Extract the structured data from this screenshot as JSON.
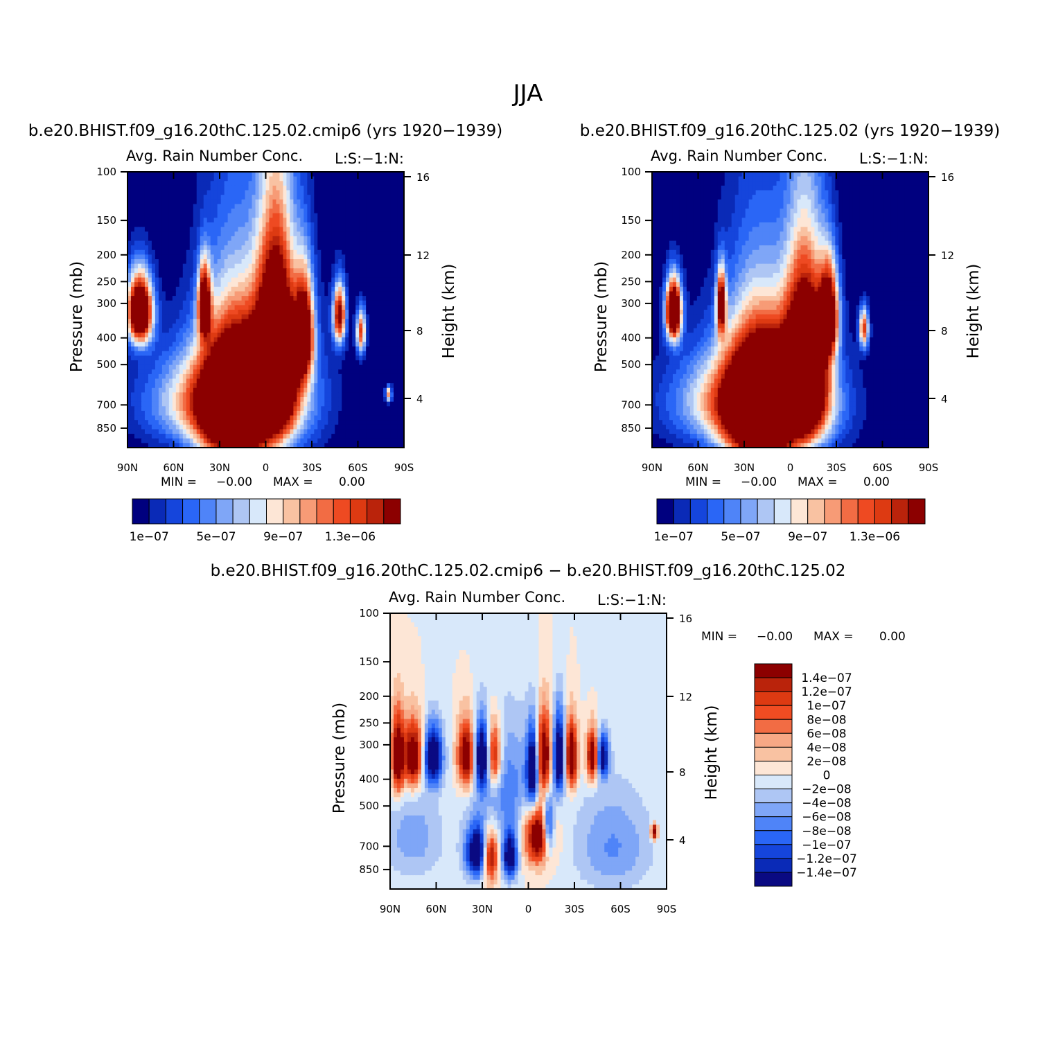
{
  "figure": {
    "title": "JJA"
  },
  "palettes": {
    "field": [
      "#00007f",
      "#0a2ab7",
      "#1545dc",
      "#2a66f6",
      "#4f84f8",
      "#7fa6f7",
      "#aec6f4",
      "#d8e8fa",
      "#fde6d6",
      "#f9c2a2",
      "#f79b76",
      "#f26c44",
      "#ee4a22",
      "#dd3a12",
      "#ba230b",
      "#8c0000"
    ],
    "diff": [
      "#0a0a82",
      "#0a2ab7",
      "#1545dc",
      "#2a66f6",
      "#4f84f8",
      "#7fa6f7",
      "#aec6f4",
      "#d8e8fa",
      "#fde6d6",
      "#f9c2a2",
      "#f7a886",
      "#f26c44",
      "#f04c22",
      "#dd3a12",
      "#ba230b",
      "#8c0000"
    ]
  },
  "chart_data": [
    {
      "type": "heatmap",
      "subtitle": "b.e20.BHIST.f09_g16.20thC.125.02.cmip6 (yrs 1920-1939)",
      "field_label": "Avg. Rain Number Conc.",
      "field_units": "L:S:-1:N:",
      "ylabel": "Pressure (mb)",
      "ylabel_right": "Height (km)",
      "x": {
        "ticks": [
          "90N",
          "60N",
          "30N",
          "0",
          "30S",
          "60S",
          "90S"
        ],
        "range": [
          90,
          -90
        ]
      },
      "y": {
        "ticks": [
          100,
          150,
          200,
          250,
          300,
          400,
          500,
          700,
          850
        ],
        "range": [
          100,
          1000
        ],
        "scale": "log"
      },
      "y_right": {
        "ticks": [
          16,
          12,
          8,
          4
        ]
      },
      "stats": {
        "min_label": "MIN =",
        "min": "-0.00",
        "max_label": "MAX =",
        "max": "0.00"
      },
      "colorbar": {
        "levels": 16,
        "labels": [
          "1e-07",
          "5e-07",
          "9e-07",
          "1.3e-06"
        ]
      },
      "features": [
        {
          "lat": 20,
          "p": 720,
          "slat": 22,
          "sp": 420,
          "v": 1.0
        },
        {
          "lat": -7,
          "p": 450,
          "slat": 12,
          "sp": 330,
          "v": 1.0
        },
        {
          "lat": -25,
          "p": 380,
          "slat": 6,
          "sp": 160,
          "v": 0.75
        },
        {
          "lat": -7,
          "p": 640,
          "slat": 28,
          "sp": 350,
          "v": 0.35
        },
        {
          "lat": 82,
          "p": 320,
          "slat": 8,
          "sp": 90,
          "v": 1.0
        },
        {
          "lat": 40,
          "p": 300,
          "slat": 4,
          "sp": 90,
          "v": 0.75
        },
        {
          "lat": -48,
          "p": 330,
          "slat": 4,
          "sp": 80,
          "v": 0.7
        },
        {
          "lat": -62,
          "p": 380,
          "slat": 3,
          "sp": 70,
          "v": 0.55
        },
        {
          "lat": 35,
          "p": 680,
          "slat": 40,
          "sp": 260,
          "v": 0.45
        },
        {
          "lat": -80,
          "p": 640,
          "slat": 2,
          "sp": 40,
          "v": 0.45
        }
      ]
    },
    {
      "type": "heatmap",
      "subtitle": "b.e20.BHIST.f09_g16.20thC.125.02 (yrs 1920-1939)",
      "field_label": "Avg. Rain Number Conc.",
      "field_units": "L:S:-1:N:",
      "ylabel": "Pressure (mb)",
      "ylabel_right": "Height (km)",
      "x": {
        "ticks": [
          "90N",
          "60N",
          "30N",
          "0",
          "30S",
          "60S",
          "90S"
        ],
        "range": [
          90,
          -90
        ]
      },
      "y": {
        "ticks": [
          100,
          150,
          200,
          250,
          300,
          400,
          500,
          700,
          850
        ],
        "range": [
          100,
          1000
        ],
        "scale": "log"
      },
      "y_right": {
        "ticks": [
          16,
          12,
          8,
          4
        ]
      },
      "stats": {
        "min_label": "MIN =",
        "min": "-0.00",
        "max_label": "MAX =",
        "max": "0.00"
      },
      "colorbar": {
        "levels": 16,
        "labels": [
          "1e-07",
          "5e-07",
          "9e-07",
          "1.3e-06"
        ]
      },
      "features": [
        {
          "lat": 20,
          "p": 730,
          "slat": 22,
          "sp": 420,
          "v": 1.0
        },
        {
          "lat": -10,
          "p": 500,
          "slat": 13,
          "sp": 330,
          "v": 1.0
        },
        {
          "lat": -25,
          "p": 330,
          "slat": 6,
          "sp": 120,
          "v": 0.8
        },
        {
          "lat": 76,
          "p": 320,
          "slat": 5,
          "sp": 80,
          "v": 1.0
        },
        {
          "lat": 45,
          "p": 300,
          "slat": 3,
          "sp": 80,
          "v": 0.7
        },
        {
          "lat": -48,
          "p": 370,
          "slat": 3,
          "sp": 60,
          "v": 0.55
        },
        {
          "lat": 35,
          "p": 680,
          "slat": 40,
          "sp": 260,
          "v": 0.45
        },
        {
          "lat": -7,
          "p": 700,
          "slat": 28,
          "sp": 300,
          "v": 0.35
        }
      ]
    },
    {
      "type": "heatmap",
      "subtitle": "b.e20.BHIST.f09_g16.20thC.125.02.cmip6 - b.e20.BHIST.f09_g16.20thC.125.02",
      "field_label": "Avg. Rain Number Conc.",
      "field_units": "L:S:-1:N:",
      "ylabel": "Pressure (mb)",
      "ylabel_right": "Height (km)",
      "x": {
        "ticks": [
          "90N",
          "60N",
          "30N",
          "0",
          "30S",
          "60S",
          "90S"
        ],
        "range": [
          90,
          -90
        ]
      },
      "y": {
        "ticks": [
          100,
          150,
          200,
          250,
          300,
          400,
          500,
          700,
          850
        ],
        "range": [
          100,
          1000
        ],
        "scale": "log"
      },
      "y_right": {
        "ticks": [
          16,
          12,
          8,
          4
        ]
      },
      "stats": {
        "min_label": "MIN =",
        "min": "-0.00",
        "max_label": "MAX =",
        "max": "0.00"
      },
      "colorbar": {
        "levels": 16,
        "labels": [
          "1.4e-07",
          "1.2e-07",
          "1e-07",
          "8e-08",
          "6e-08",
          "4e-08",
          "2e-08",
          "0",
          "-2e-08",
          "-4e-08",
          "-6e-08",
          "-8e-08",
          "-1e-07",
          "-1.2e-07",
          "-1.4e-07"
        ]
      },
      "features": [
        {
          "lat": 85,
          "p": 330,
          "slat": 4,
          "sp": 110,
          "v": 1.0
        },
        {
          "lat": 75,
          "p": 330,
          "slat": 6,
          "sp": 90,
          "v": 1.0
        },
        {
          "lat": 62,
          "p": 330,
          "slat": 6,
          "sp": 80,
          "v": -1.0
        },
        {
          "lat": 40,
          "p": 330,
          "slat": 6,
          "sp": 90,
          "v": 1.0
        },
        {
          "lat": 30,
          "p": 330,
          "slat": 6,
          "sp": 90,
          "v": -1.0
        },
        {
          "lat": 23,
          "p": 330,
          "slat": 5,
          "sp": 90,
          "v": 1.0
        },
        {
          "lat": 33,
          "p": 740,
          "slat": 8,
          "sp": 160,
          "v": -1.0
        },
        {
          "lat": 25,
          "p": 760,
          "slat": 5,
          "sp": 160,
          "v": 1.0
        },
        {
          "lat": 12,
          "p": 760,
          "slat": 5,
          "sp": 150,
          "v": -0.9
        },
        {
          "lat": -3,
          "p": 370,
          "slat": 4,
          "sp": 120,
          "v": -1.0
        },
        {
          "lat": -10,
          "p": 330,
          "slat": 5,
          "sp": 110,
          "v": 1.0
        },
        {
          "lat": -20,
          "p": 330,
          "slat": 4,
          "sp": 110,
          "v": -1.0
        },
        {
          "lat": -28,
          "p": 330,
          "slat": 4,
          "sp": 90,
          "v": 1.0
        },
        {
          "lat": -7,
          "p": 640,
          "slat": 9,
          "sp": 160,
          "v": 1.0
        },
        {
          "lat": -13,
          "p": 600,
          "slat": 4,
          "sp": 150,
          "v": -0.9
        },
        {
          "lat": -42,
          "p": 330,
          "slat": 4,
          "sp": 70,
          "v": 1.0
        },
        {
          "lat": -48,
          "p": 330,
          "slat": 4,
          "sp": 60,
          "v": -0.9
        },
        {
          "lat": 15,
          "p": 420,
          "slat": 20,
          "sp": 200,
          "v": -0.35
        },
        {
          "lat": -55,
          "p": 700,
          "slat": 25,
          "sp": 300,
          "v": -0.3
        },
        {
          "lat": 75,
          "p": 650,
          "slat": 20,
          "sp": 250,
          "v": -0.25
        },
        {
          "lat": -82,
          "p": 620,
          "slat": 2,
          "sp": 40,
          "v": 1.0
        }
      ]
    }
  ]
}
